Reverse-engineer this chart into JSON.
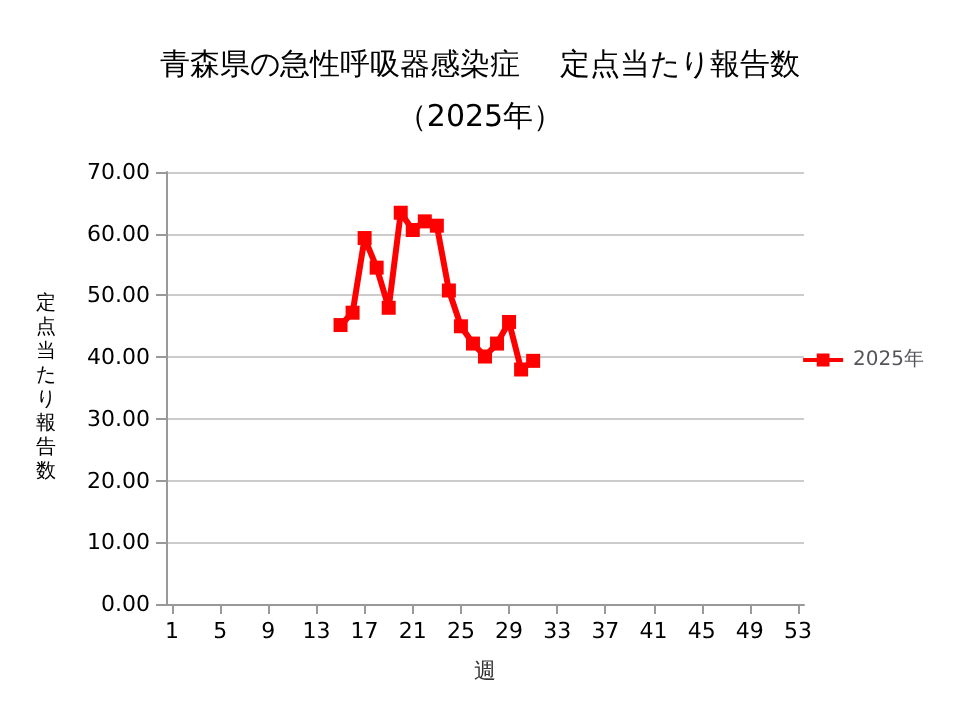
{
  "chart_data": {
    "type": "line",
    "title": "青森県の急性呼吸器感染症　 定点当たり報告数",
    "subtitle": "（2025年）",
    "xlabel": "週",
    "ylabel": "定点当たり報告数",
    "categories": [
      "1",
      null,
      null,
      null,
      "5",
      null,
      null,
      null,
      "9",
      null,
      null,
      null,
      "13",
      null,
      null,
      null,
      "17",
      null,
      null,
      null,
      "21",
      null,
      null,
      null,
      "25",
      null,
      null,
      null,
      "29",
      null,
      null,
      null,
      "33",
      null,
      null,
      null,
      "37",
      null,
      null,
      null,
      "41",
      null,
      null,
      null,
      "45",
      null,
      null,
      null,
      "49",
      null,
      null,
      null,
      "53"
    ],
    "series": [
      {
        "name": "2025年",
        "color": "#ff0000",
        "values": [
          null,
          null,
          null,
          null,
          null,
          null,
          null,
          null,
          null,
          null,
          null,
          null,
          null,
          null,
          45.2,
          47.2,
          59.3,
          54.5,
          48.0,
          63.4,
          60.6,
          62.0,
          61.3,
          50.8,
          45.0,
          42.2,
          40.1,
          42.2,
          45.7,
          38.0,
          39.4,
          null,
          null,
          null,
          null,
          null,
          null,
          null,
          null,
          null,
          null,
          null,
          null,
          null,
          null,
          null,
          null,
          null,
          null,
          null,
          null,
          null,
          null
        ]
      }
    ],
    "ylim": [
      0,
      70
    ],
    "yticks": [
      {
        "value": 0,
        "label": "0.00"
      },
      {
        "value": 10,
        "label": "10.00"
      },
      {
        "value": 20,
        "label": "20.00"
      },
      {
        "value": 30,
        "label": "30.00"
      },
      {
        "value": 40,
        "label": "40.00"
      },
      {
        "value": 50,
        "label": "50.00"
      },
      {
        "value": 60,
        "label": "60.00"
      },
      {
        "value": 70,
        "label": "70.00"
      }
    ],
    "grid": "y",
    "legend": "right",
    "marker": "square",
    "line_style": "solid"
  }
}
